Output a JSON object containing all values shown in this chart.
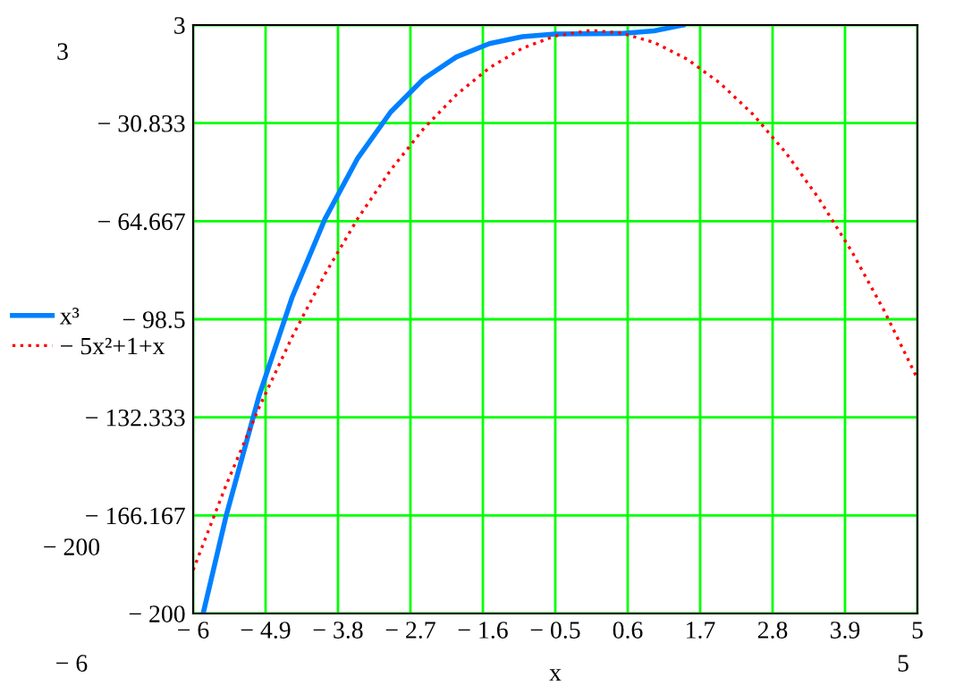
{
  "chart_data": {
    "type": "line",
    "xlabel": "x",
    "xlim": [
      -6,
      5
    ],
    "ylim": [
      -200,
      3
    ],
    "xticks": [
      {
        "value": -6,
        "label": "− 6"
      },
      {
        "value": -4.9,
        "label": "− 4.9"
      },
      {
        "value": -3.8,
        "label": "− 3.8"
      },
      {
        "value": -2.7,
        "label": "− 2.7"
      },
      {
        "value": -1.6,
        "label": "− 1.6"
      },
      {
        "value": -0.5,
        "label": "− 0.5"
      },
      0.6,
      1.7,
      2.8,
      3.9,
      5
    ],
    "yticks": [
      {
        "value": -200,
        "label": "− 200"
      },
      {
        "value": -166.167,
        "label": "− 166.167"
      },
      {
        "value": -132.333,
        "label": "− 132.333"
      },
      {
        "value": -98.5,
        "label": "− 98.5"
      },
      {
        "value": -64.667,
        "label": "− 64.667"
      },
      {
        "value": -30.833,
        "label": "− 30.833"
      },
      3
    ],
    "grid": true,
    "legend": "left",
    "series": [
      {
        "name": "x³",
        "color": "#0080ff",
        "line_style": "solid",
        "x": [
          -5.848,
          -5.5,
          -5,
          -4.5,
          -4,
          -3.5,
          -3,
          -2.5,
          -2,
          -1.5,
          -1,
          -0.5,
          0,
          0.5,
          1,
          1.44
        ],
        "values": [
          -200,
          -166.4,
          -125,
          -91.1,
          -64,
          -42.9,
          -27,
          -15.6,
          -8,
          -3.4,
          -1,
          -0.1,
          0,
          0.1,
          1,
          3
        ]
      },
      {
        "name": "− 5x²+1+x",
        "color": "#ff0000",
        "line_style": "dotted",
        "x": [
          -6,
          -5.5,
          -5,
          -4.5,
          -4,
          -3.5,
          -3,
          -2.5,
          -2,
          -1.5,
          -1,
          -0.5,
          0,
          0.1,
          0.5,
          1,
          1.5,
          2,
          2.5,
          3,
          3.5,
          4,
          4.5,
          5
        ],
        "values": [
          -185,
          -155.75,
          -129,
          -104.75,
          -83,
          -63.75,
          -47,
          -32.75,
          -21,
          -11.75,
          -5,
          -0.75,
          1,
          1.05,
          0.25,
          -3,
          -8.75,
          -17,
          -27.75,
          -41,
          -56.75,
          -75,
          -95.75,
          -119
        ]
      }
    ],
    "annotations": [
      "3",
      "− 200",
      "− 6",
      "5"
    ]
  }
}
